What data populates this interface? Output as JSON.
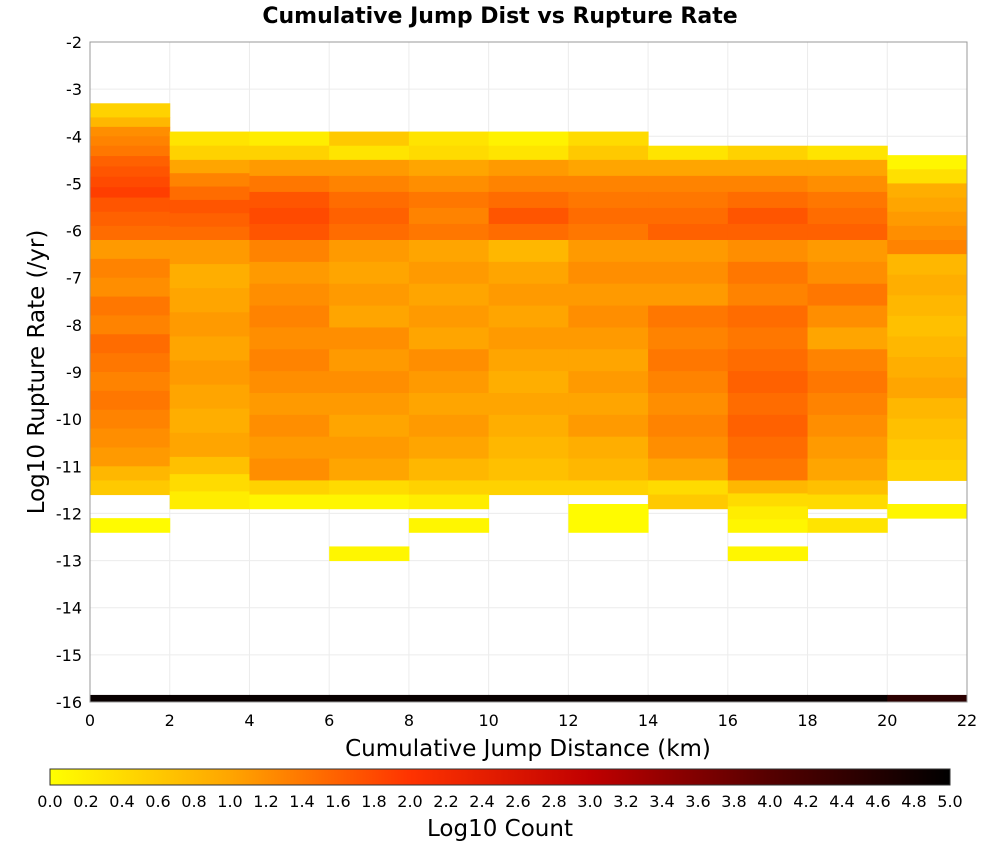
{
  "chart_data": {
    "type": "heatmap",
    "title": "Cumulative Jump Dist vs Rupture Rate",
    "xlabel": "Cumulative Jump Distance (km)",
    "ylabel": "Log10 Rupture Rate (/yr)",
    "xlim": [
      0,
      22
    ],
    "ylim": [
      -16,
      -2
    ],
    "x_ticks": [
      "0",
      "2",
      "4",
      "6",
      "8",
      "10",
      "12",
      "14",
      "16",
      "18",
      "20",
      "22"
    ],
    "y_ticks": [
      "-2",
      "-3",
      "-4",
      "-5",
      "-6",
      "-7",
      "-8",
      "-9",
      "-10",
      "-11",
      "-12",
      "-13",
      "-14",
      "-15",
      "-16"
    ],
    "x_bin_width": 2,
    "y_bin_height": 0.1,
    "grid": true,
    "colorbar": {
      "label": "Log10 Count",
      "range": [
        0,
        5
      ],
      "ticks": [
        "0.0",
        "0.2",
        "0.4",
        "0.6",
        "0.8",
        "1.0",
        "1.2",
        "1.4",
        "1.6",
        "1.8",
        "2.0",
        "2.2",
        "2.4",
        "2.6",
        "2.8",
        "3.0",
        "3.2",
        "3.4",
        "3.6",
        "3.8",
        "4.0",
        "4.2",
        "4.4",
        "4.6",
        "4.8",
        "5.0"
      ],
      "colormap": [
        "#ffff00",
        "#ffa500",
        "#ff3300",
        "#c00000",
        "#550000",
        "#000000"
      ]
    },
    "cells": [
      {
        "x0": 0,
        "y0": -3.3,
        "y1": -3.6,
        "values": [
          0.5
        ]
      },
      {
        "x0": 0,
        "y0": -3.6,
        "y1": -4.2,
        "values": [
          0.8,
          1.2,
          1.3
        ]
      },
      {
        "x0": 0,
        "y0": -4.2,
        "y1": -5.3,
        "values": [
          1.4,
          1.6,
          1.7,
          1.8,
          1.9
        ]
      },
      {
        "x0": 0,
        "y0": -5.3,
        "y1": -6.2,
        "values": [
          1.7,
          1.6,
          1.5
        ]
      },
      {
        "x0": 0,
        "y0": -6.2,
        "y1": -11.0,
        "values": [
          1.1,
          1.3,
          1.2,
          1.4,
          1.3,
          1.5,
          1.4,
          1.3,
          1.4,
          1.3,
          1.2,
          1.1
        ]
      },
      {
        "x0": 0,
        "y0": -11.0,
        "y1": -11.6,
        "values": [
          0.8,
          0.6
        ]
      },
      {
        "x0": 0,
        "y0": -12.1,
        "y1": -12.4,
        "values": [
          0.05
        ]
      },
      {
        "x0": 2,
        "y0": -3.9,
        "y1": -4.5,
        "values": [
          0.3,
          0.5
        ]
      },
      {
        "x0": 2,
        "y0": -4.5,
        "y1": -6.2,
        "values": [
          1.0,
          1.3,
          1.5,
          1.7,
          1.6,
          1.5
        ]
      },
      {
        "x0": 2,
        "y0": -6.2,
        "y1": -10.8,
        "values": [
          1.1,
          0.9,
          1.0,
          1.1,
          1.0,
          1.1,
          1.0,
          0.9,
          1.0
        ]
      },
      {
        "x0": 2,
        "y0": -10.8,
        "y1": -11.9,
        "values": [
          0.7,
          0.4,
          0.2
        ]
      },
      {
        "x0": 4,
        "y0": -3.9,
        "y1": -4.5,
        "values": [
          0.2,
          0.5
        ]
      },
      {
        "x0": 4,
        "y0": -4.5,
        "y1": -6.2,
        "values": [
          1.1,
          1.4,
          1.7,
          1.8,
          1.7
        ]
      },
      {
        "x0": 4,
        "y0": -6.2,
        "y1": -11.3,
        "values": [
          1.3,
          1.1,
          1.2,
          1.3,
          1.2,
          1.3,
          1.2,
          1.1,
          1.2,
          1.1,
          1.2
        ]
      },
      {
        "x0": 4,
        "y0": -11.3,
        "y1": -11.9,
        "values": [
          0.5,
          0.1
        ]
      },
      {
        "x0": 6,
        "y0": -3.9,
        "y1": -4.5,
        "values": [
          0.6,
          0.3
        ]
      },
      {
        "x0": 6,
        "y0": -4.5,
        "y1": -6.2,
        "values": [
          1.1,
          1.3,
          1.5,
          1.6,
          1.5
        ]
      },
      {
        "x0": 6,
        "y0": -6.2,
        "y1": -11.3,
        "values": [
          1.1,
          1.0,
          1.1,
          1.0,
          1.2,
          1.1,
          1.2,
          1.1,
          1.0,
          1.1,
          1.0
        ]
      },
      {
        "x0": 6,
        "y0": -11.3,
        "y1": -11.9,
        "values": [
          0.4,
          0.1
        ]
      },
      {
        "x0": 6,
        "y0": -12.7,
        "y1": -13.0,
        "values": [
          0.1
        ]
      },
      {
        "x0": 8,
        "y0": -3.9,
        "y1": -4.5,
        "values": [
          0.3,
          0.4
        ]
      },
      {
        "x0": 8,
        "y0": -4.5,
        "y1": -6.2,
        "values": [
          1.0,
          1.2,
          1.4,
          1.3,
          1.4
        ]
      },
      {
        "x0": 8,
        "y0": -6.2,
        "y1": -11.3,
        "values": [
          1.0,
          1.1,
          1.0,
          1.1,
          1.0,
          1.2,
          1.1,
          1.0,
          1.1,
          1.0,
          0.8
        ]
      },
      {
        "x0": 8,
        "y0": -11.3,
        "y1": -11.9,
        "values": [
          0.5,
          0.2
        ]
      },
      {
        "x0": 8,
        "y0": -12.1,
        "y1": -12.4,
        "values": [
          0.1
        ]
      },
      {
        "x0": 10,
        "y0": -3.9,
        "y1": -4.5,
        "values": [
          0.15,
          0.3
        ]
      },
      {
        "x0": 10,
        "y0": -4.5,
        "y1": -6.2,
        "values": [
          1.1,
          1.3,
          1.5,
          1.7,
          1.5
        ]
      },
      {
        "x0": 10,
        "y0": -6.2,
        "y1": -11.3,
        "values": [
          0.8,
          1.0,
          1.1,
          1.0,
          1.1,
          1.0,
          0.9,
          1.0,
          0.9,
          0.8,
          0.7
        ]
      },
      {
        "x0": 10,
        "y0": -11.3,
        "y1": -11.6,
        "values": [
          0.5
        ]
      },
      {
        "x0": 12,
        "y0": -3.9,
        "y1": -4.5,
        "values": [
          0.4,
          0.6
        ]
      },
      {
        "x0": 12,
        "y0": -4.5,
        "y1": -6.2,
        "values": [
          1.0,
          1.3,
          1.4,
          1.5,
          1.4
        ]
      },
      {
        "x0": 12,
        "y0": -6.2,
        "y1": -11.3,
        "values": [
          1.1,
          1.2,
          1.1,
          1.2,
          1.1,
          1.0,
          1.1,
          1.0,
          1.1,
          0.9,
          0.8
        ]
      },
      {
        "x0": 12,
        "y0": -11.3,
        "y1": -11.6,
        "values": [
          0.5
        ]
      },
      {
        "x0": 12,
        "y0": -11.8,
        "y1": -12.4,
        "values": [
          0.05
        ]
      },
      {
        "x0": 14,
        "y0": -4.2,
        "y1": -4.5,
        "values": [
          0.3
        ]
      },
      {
        "x0": 14,
        "y0": -4.5,
        "y1": -6.2,
        "values": [
          1.0,
          1.3,
          1.4,
          1.5,
          1.6
        ]
      },
      {
        "x0": 14,
        "y0": -6.2,
        "y1": -11.3,
        "values": [
          1.1,
          1.2,
          1.1,
          1.4,
          1.3,
          1.4,
          1.3,
          1.2,
          1.3,
          1.2,
          1.0
        ]
      },
      {
        "x0": 14,
        "y0": -11.3,
        "y1": -11.9,
        "values": [
          0.4,
          0.6
        ]
      },
      {
        "x0": 16,
        "y0": -4.2,
        "y1": -4.5,
        "values": [
          0.5
        ]
      },
      {
        "x0": 16,
        "y0": -4.5,
        "y1": -6.2,
        "values": [
          1.0,
          1.3,
          1.5,
          1.7,
          1.6
        ]
      },
      {
        "x0": 16,
        "y0": -6.2,
        "y1": -11.3,
        "values": [
          1.2,
          1.4,
          1.3,
          1.5,
          1.4,
          1.5,
          1.6,
          1.5,
          1.6,
          1.5,
          1.4
        ]
      },
      {
        "x0": 16,
        "y0": -11.3,
        "y1": -12.4,
        "values": [
          0.8,
          0.4,
          0.2,
          0.1
        ]
      },
      {
        "x0": 16,
        "y0": -12.7,
        "y1": -13.0,
        "values": [
          0.1
        ]
      },
      {
        "x0": 18,
        "y0": -4.2,
        "y1": -4.5,
        "values": [
          0.3
        ]
      },
      {
        "x0": 18,
        "y0": -4.5,
        "y1": -6.2,
        "values": [
          1.0,
          1.2,
          1.4,
          1.5,
          1.6
        ]
      },
      {
        "x0": 18,
        "y0": -6.2,
        "y1": -11.3,
        "values": [
          1.1,
          1.2,
          1.4,
          1.2,
          1.0,
          1.3,
          1.4,
          1.3,
          1.2,
          1.1,
          1.0
        ]
      },
      {
        "x0": 18,
        "y0": -11.3,
        "y1": -11.9,
        "values": [
          0.7,
          0.4
        ]
      },
      {
        "x0": 18,
        "y0": -12.1,
        "y1": -12.4,
        "values": [
          0.3
        ]
      },
      {
        "x0": 20,
        "y0": -4.4,
        "y1": -5.0,
        "values": [
          0.1,
          0.35
        ]
      },
      {
        "x0": 20,
        "y0": -5.0,
        "y1": -6.5,
        "values": [
          0.9,
          1.0,
          1.1,
          1.2,
          1.3
        ]
      },
      {
        "x0": 20,
        "y0": -6.5,
        "y1": -11.3,
        "values": [
          0.8,
          0.9,
          0.8,
          0.7,
          0.8,
          0.9,
          1.0,
          0.8,
          0.7,
          0.6,
          0.5
        ]
      },
      {
        "x0": 20,
        "y0": -11.8,
        "y1": -12.1,
        "values": [
          0.1
        ]
      }
    ],
    "bottom_row": {
      "y0": -15.85,
      "y1": -16.0,
      "values": [
        4.9,
        4.9,
        4.9,
        4.9,
        4.9,
        4.9,
        4.9,
        4.9,
        4.9,
        4.9,
        4.5
      ]
    }
  }
}
